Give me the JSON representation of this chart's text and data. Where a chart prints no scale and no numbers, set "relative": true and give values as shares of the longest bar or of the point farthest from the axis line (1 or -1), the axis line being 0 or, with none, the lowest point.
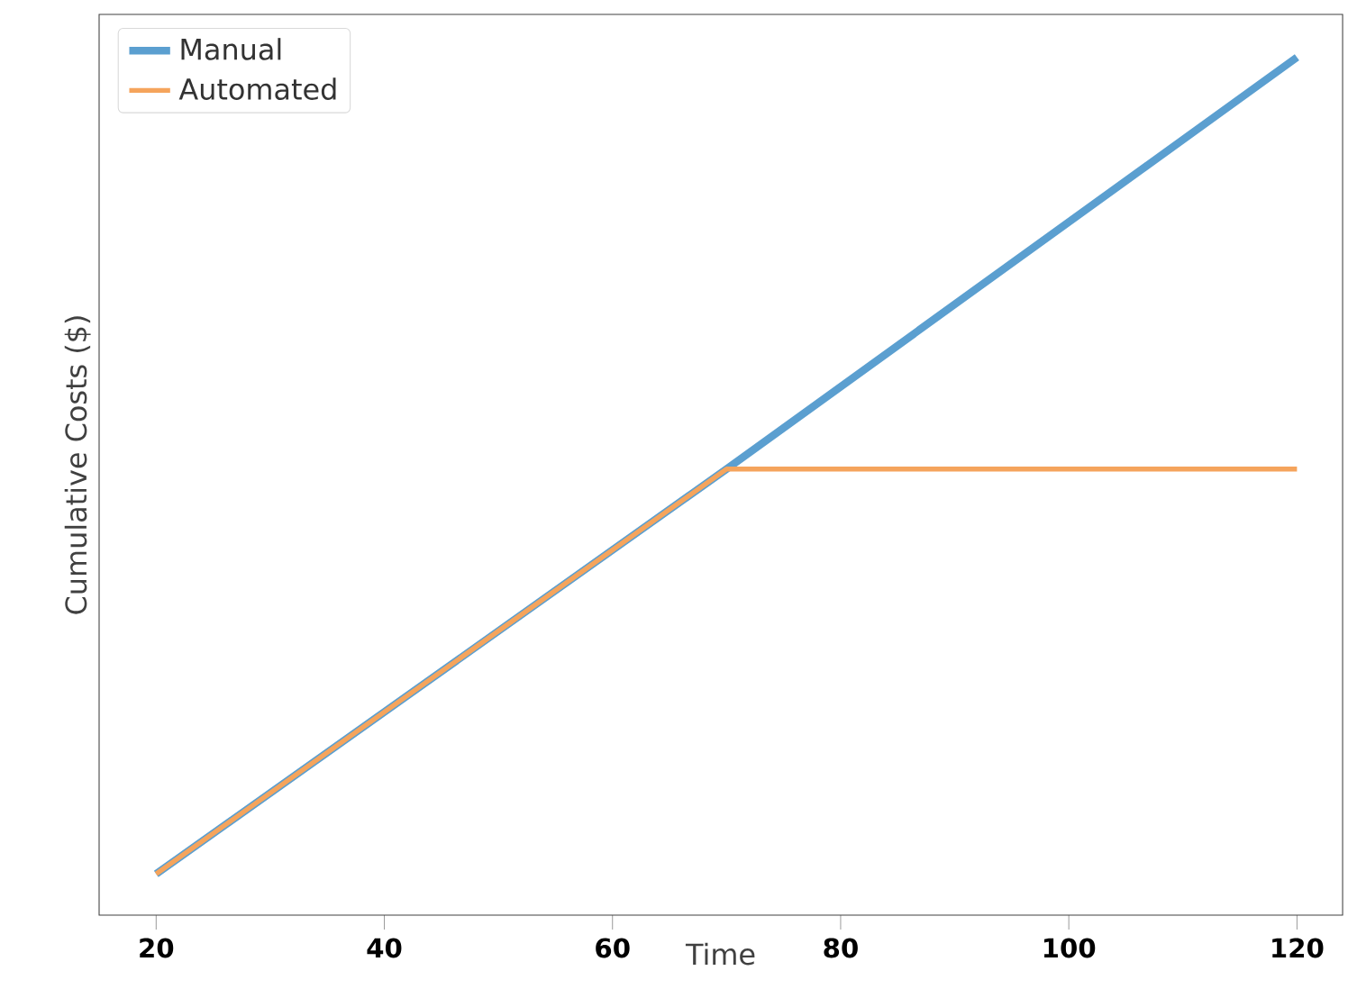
{
  "chart_data": {
    "type": "line",
    "relative": true,
    "xlabel": "Time",
    "ylabel": "Cumulative Costs ($)",
    "xlim": [
      15,
      124
    ],
    "xticks": [
      20,
      40,
      60,
      80,
      100,
      120
    ],
    "legend": "top left",
    "grid": false,
    "marker": "none",
    "line_style": "solid",
    "series": [
      {
        "name": "Manual",
        "color": "#5b9fd0",
        "x": [
          20,
          70,
          120
        ],
        "values": [
          0.048,
          0.52,
          1
        ]
      },
      {
        "name": "Automated",
        "color": "#f5a45c",
        "x": [
          20,
          70,
          120
        ],
        "values": [
          0.048,
          0.52,
          0.52
        ]
      }
    ]
  }
}
